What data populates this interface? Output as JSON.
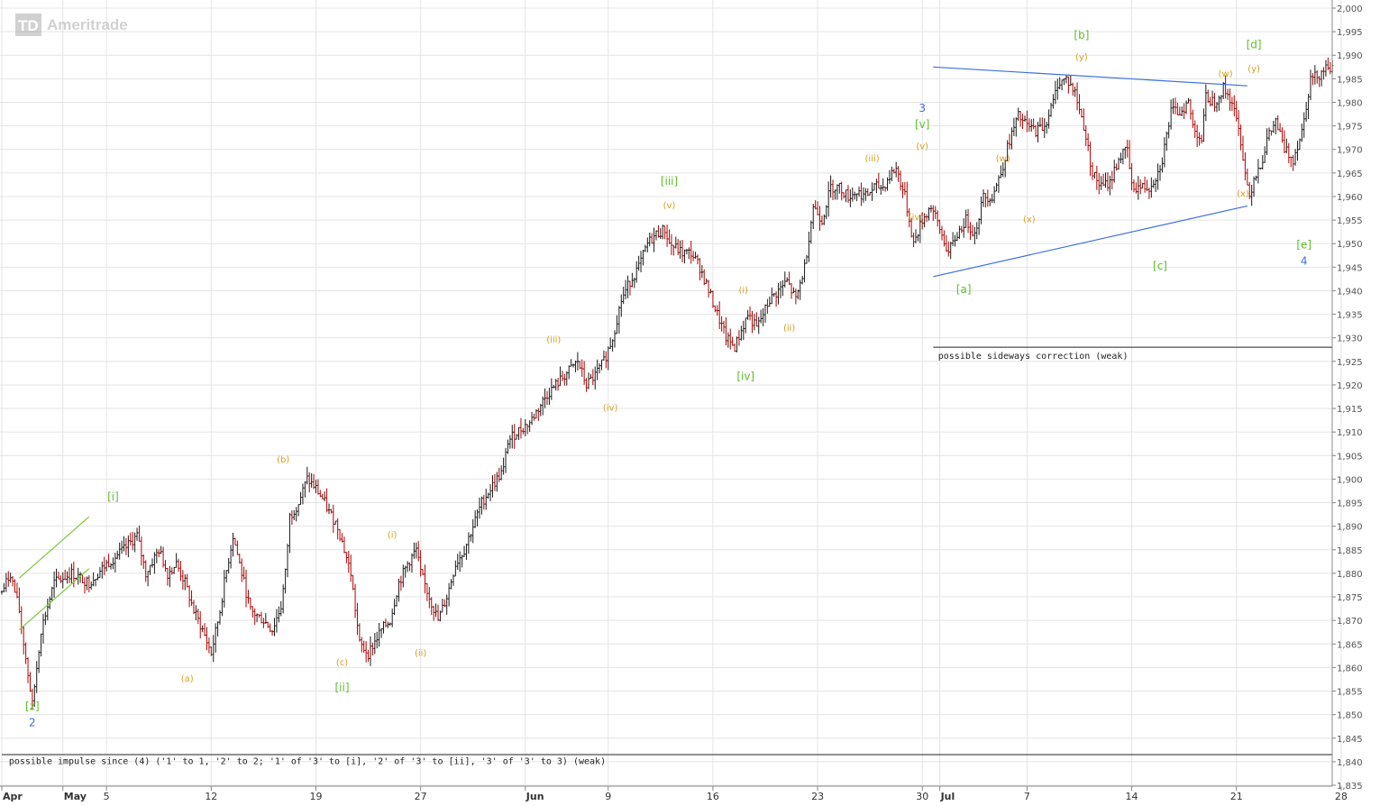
{
  "logo": {
    "badge": "TD",
    "text": "Ameritrade"
  },
  "chart_data": {
    "type": "candlestick",
    "x_ticks": [
      "Apr",
      "May",
      "5",
      "12",
      "19",
      "27",
      "Jun",
      "9",
      "16",
      "23",
      "30",
      "Jul",
      "7",
      "14",
      "21",
      "28"
    ],
    "y_ticks": [
      "2,000",
      "1,995",
      "1,990",
      "1,985",
      "1,980",
      "1,975",
      "1,970",
      "1,965",
      "1,960",
      "1,955",
      "1,950",
      "1,945",
      "1,940",
      "1,935",
      "1,930",
      "1,925",
      "1,920",
      "1,915",
      "1,910",
      "1,905",
      "1,900",
      "1,895",
      "1,890",
      "1,885",
      "1,880",
      "1,875",
      "1,870",
      "1,865",
      "1,860",
      "1,855",
      "1,850",
      "1,845",
      "1,840",
      "1,835"
    ],
    "ylim": [
      1835,
      2000
    ],
    "grid": true,
    "price_path": [
      [
        0,
        1876
      ],
      [
        2,
        1880
      ],
      [
        4,
        1872
      ],
      [
        7,
        1852
      ],
      [
        9,
        1868
      ],
      [
        12,
        1878
      ],
      [
        16,
        1880
      ],
      [
        20,
        1878
      ],
      [
        24,
        1882
      ],
      [
        28,
        1885
      ],
      [
        31,
        1888
      ],
      [
        33,
        1880
      ],
      [
        36,
        1885
      ],
      [
        38,
        1880
      ],
      [
        40,
        1882
      ],
      [
        42,
        1878
      ],
      [
        44,
        1872
      ],
      [
        46,
        1868
      ],
      [
        48,
        1863
      ],
      [
        50,
        1872
      ],
      [
        51,
        1878
      ],
      [
        53,
        1888
      ],
      [
        55,
        1880
      ],
      [
        57,
        1872
      ],
      [
        60,
        1870
      ],
      [
        62,
        1868
      ],
      [
        64,
        1873
      ],
      [
        65,
        1880
      ],
      [
        66,
        1892
      ],
      [
        68,
        1895
      ],
      [
        70,
        1900
      ],
      [
        72,
        1898
      ],
      [
        74,
        1895
      ],
      [
        75,
        1893
      ],
      [
        77,
        1890
      ],
      [
        80,
        1880
      ],
      [
        82,
        1865
      ],
      [
        84,
        1863
      ],
      [
        87,
        1868
      ],
      [
        89,
        1870
      ],
      [
        91,
        1878
      ],
      [
        93,
        1882
      ],
      [
        95,
        1885
      ],
      [
        96,
        1880
      ],
      [
        98,
        1875
      ],
      [
        100,
        1870
      ],
      [
        102,
        1875
      ],
      [
        104,
        1882
      ],
      [
        106,
        1885
      ],
      [
        108,
        1890
      ],
      [
        110,
        1895
      ],
      [
        112,
        1898
      ],
      [
        115,
        1902
      ],
      [
        116,
        1908
      ],
      [
        118,
        1910
      ],
      [
        121,
        1912
      ],
      [
        123,
        1915
      ],
      [
        125,
        1918
      ],
      [
        127,
        1920
      ],
      [
        129,
        1922
      ],
      [
        132,
        1925
      ],
      [
        134,
        1920
      ],
      [
        136,
        1922
      ],
      [
        138,
        1925
      ],
      [
        140,
        1930
      ],
      [
        142,
        1938
      ],
      [
        144,
        1942
      ],
      [
        146,
        1945
      ],
      [
        148,
        1950
      ],
      [
        150,
        1952
      ],
      [
        152,
        1953
      ],
      [
        153,
        1950
      ],
      [
        156,
        1948
      ],
      [
        158,
        1948
      ],
      [
        160,
        1945
      ],
      [
        162,
        1940
      ],
      [
        164,
        1935
      ],
      [
        166,
        1930
      ],
      [
        168,
        1928
      ],
      [
        171,
        1935
      ],
      [
        173,
        1932
      ],
      [
        176,
        1938
      ],
      [
        178,
        1940
      ],
      [
        180,
        1942
      ],
      [
        182,
        1938
      ],
      [
        184,
        1945
      ],
      [
        186,
        1958
      ],
      [
        188,
        1955
      ],
      [
        190,
        1962
      ],
      [
        192,
        1962
      ],
      [
        194,
        1960
      ],
      [
        196,
        1961
      ],
      [
        198,
        1960
      ],
      [
        200,
        1962
      ],
      [
        202,
        1962
      ],
      [
        204,
        1965
      ],
      [
        205,
        1966
      ],
      [
        207,
        1960
      ],
      [
        209,
        1950
      ],
      [
        211,
        1955
      ],
      [
        213,
        1958
      ],
      [
        215,
        1953
      ],
      [
        217,
        1948
      ],
      [
        219,
        1952
      ],
      [
        221,
        1955
      ],
      [
        223,
        1952
      ],
      [
        225,
        1960
      ],
      [
        227,
        1960
      ],
      [
        229,
        1965
      ],
      [
        231,
        1972
      ],
      [
        233,
        1977
      ],
      [
        235,
        1975
      ],
      [
        237,
        1974
      ],
      [
        239,
        1975
      ],
      [
        241,
        1980
      ],
      [
        242,
        1984
      ],
      [
        244,
        1985
      ],
      [
        246,
        1982
      ],
      [
        248,
        1975
      ],
      [
        250,
        1965
      ],
      [
        252,
        1962
      ],
      [
        254,
        1963
      ],
      [
        256,
        1968
      ],
      [
        258,
        1970
      ],
      [
        259,
        1962
      ],
      [
        261,
        1962
      ],
      [
        263,
        1962
      ],
      [
        265,
        1965
      ],
      [
        266,
        1968
      ],
      [
        268,
        1978
      ],
      [
        270,
        1978
      ],
      [
        272,
        1980
      ],
      [
        273,
        1975
      ],
      [
        275,
        1972
      ],
      [
        276,
        1981
      ],
      [
        278,
        1980
      ],
      [
        280,
        1983
      ],
      [
        282,
        1980
      ],
      [
        284,
        1972
      ],
      [
        285,
        1965
      ],
      [
        286,
        1960
      ],
      [
        287,
        1964
      ],
      [
        289,
        1968
      ],
      [
        290,
        1972
      ],
      [
        292,
        1976
      ],
      [
        294,
        1970
      ],
      [
        296,
        1968
      ],
      [
        298,
        1974
      ],
      [
        300,
        1985
      ],
      [
        302,
        1986
      ],
      [
        304,
        1988
      ],
      [
        305,
        1987
      ]
    ],
    "trendlines": [
      {
        "from": [
          213.5,
          1987.5
        ],
        "to": [
          285.5,
          1983.5
        ],
        "color": "#3b6fe0"
      },
      {
        "from": [
          213.5,
          1943
        ],
        "to": [
          285.5,
          1958
        ],
        "color": "#3b6fe0"
      },
      {
        "from": [
          4,
          1879
        ],
        "to": [
          20,
          1892
        ],
        "color": "#7ec83a"
      },
      {
        "from": [
          4,
          1868
        ],
        "to": [
          20,
          1881
        ],
        "color": "#7ec83a"
      }
    ],
    "hlines": [
      {
        "y": 1928,
        "x_from": 213.5,
        "x_to": 337
      },
      {
        "y": 1841.5,
        "x_from": 0,
        "x_to": 337
      }
    ],
    "annotations": [
      {
        "text": "possible sideways correction (weak)",
        "x": 214,
        "y": 1925.5,
        "cls": "note"
      },
      {
        "text": "possible impulse since (4) ('1' to 1, '2' to 2; '1' of '3' to [i], '2' of '3' to [ii], '3' of '3' to 3) (weak)",
        "x": 1,
        "y": 1839.5,
        "cls": "note"
      }
    ],
    "wave_labels": [
      {
        "text": "[z]",
        "x": 7,
        "y": 1851,
        "color": "green"
      },
      {
        "text": "2",
        "x": 7,
        "y": 1847.5,
        "color": "blue"
      },
      {
        "text": "[i]",
        "x": 25.5,
        "y": 1895.5,
        "color": "green"
      },
      {
        "text": "(a)",
        "x": 42.5,
        "y": 1857,
        "color": "orange"
      },
      {
        "text": "(b)",
        "x": 64.5,
        "y": 1903.5,
        "color": "orange"
      },
      {
        "text": "(c)",
        "x": 78,
        "y": 1860.5,
        "color": "orange"
      },
      {
        "text": "[ii]",
        "x": 78,
        "y": 1855,
        "color": "green"
      },
      {
        "text": "(i)",
        "x": 89.5,
        "y": 1887.5,
        "color": "orange"
      },
      {
        "text": "(ii)",
        "x": 96,
        "y": 1862.5,
        "color": "orange"
      },
      {
        "text": "(iii)",
        "x": 126.5,
        "y": 1929,
        "color": "orange"
      },
      {
        "text": "(iv)",
        "x": 139.5,
        "y": 1914.5,
        "color": "orange"
      },
      {
        "text": "(v)",
        "x": 153,
        "y": 1957.5,
        "color": "orange"
      },
      {
        "text": "[iii]",
        "x": 153,
        "y": 1962.5,
        "color": "green"
      },
      {
        "text": "(i)",
        "x": 170,
        "y": 1939.5,
        "color": "orange"
      },
      {
        "text": "(ii)",
        "x": 180.5,
        "y": 1931.5,
        "color": "orange"
      },
      {
        "text": "[iv]",
        "x": 170.5,
        "y": 1921,
        "color": "green"
      },
      {
        "text": "(iii)",
        "x": 199.5,
        "y": 1967.5,
        "color": "orange"
      },
      {
        "text": "(iv)",
        "x": 209.5,
        "y": 1955,
        "color": "orange"
      },
      {
        "text": "(v)",
        "x": 211,
        "y": 1970,
        "color": "orange"
      },
      {
        "text": "[v]",
        "x": 211,
        "y": 1974.5,
        "color": "green"
      },
      {
        "text": "3",
        "x": 211,
        "y": 1978,
        "color": "blue"
      },
      {
        "text": "[a]",
        "x": 220.5,
        "y": 1939.5,
        "color": "green"
      },
      {
        "text": "(w)",
        "x": 229.5,
        "y": 1967.5,
        "color": "orange"
      },
      {
        "text": "(x)",
        "x": 235.5,
        "y": 1954.5,
        "color": "orange"
      },
      {
        "text": "(y)",
        "x": 247.5,
        "y": 1989,
        "color": "orange"
      },
      {
        "text": "[b]",
        "x": 247.5,
        "y": 1993.5,
        "color": "green"
      },
      {
        "text": "[c]",
        "x": 265.5,
        "y": 1944.5,
        "color": "green"
      },
      {
        "text": "(w)",
        "x": 280.5,
        "y": 1985.5,
        "color": "orange"
      },
      {
        "text": "(y)",
        "x": 287,
        "y": 1986.5,
        "color": "orange"
      },
      {
        "text": "[d]",
        "x": 287,
        "y": 1991.5,
        "color": "green"
      },
      {
        "text": "(x)",
        "x": 284.5,
        "y": 1960,
        "color": "orange"
      },
      {
        "text": "[e]",
        "x": 298.5,
        "y": 1949,
        "color": "green"
      },
      {
        "text": "4",
        "x": 298.5,
        "y": 1945.5,
        "color": "blue"
      }
    ]
  }
}
